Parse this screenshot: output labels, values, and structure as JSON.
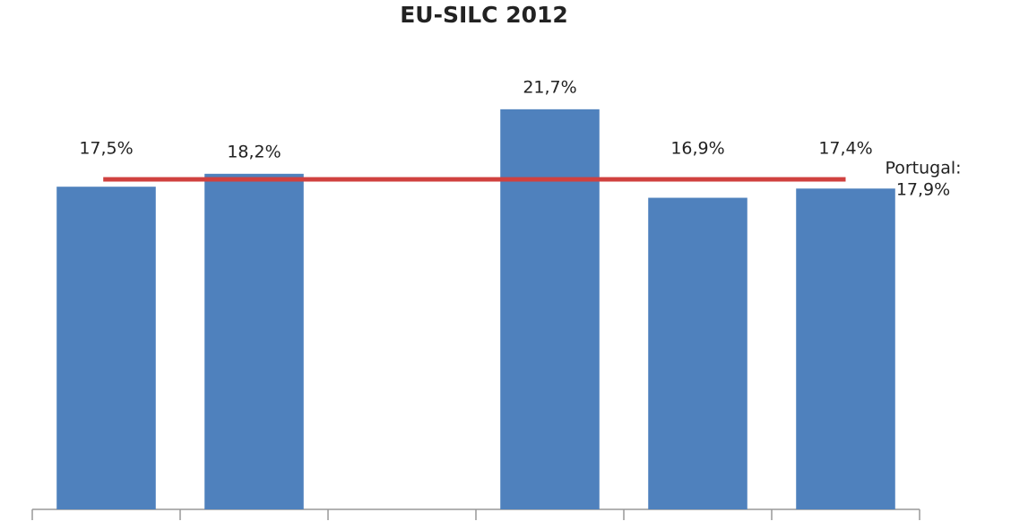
{
  "chart_data": {
    "type": "bar",
    "title": "EU-SILC 2012",
    "categories": [
      null,
      null,
      null,
      null,
      null,
      null
    ],
    "values": [
      17.5,
      18.2,
      null,
      21.7,
      16.9,
      17.4
    ],
    "value_labels": [
      "17,5%",
      "18,2%",
      null,
      "21,7%",
      "16,9%",
      "17,4%"
    ],
    "color": "#4f81bd",
    "ylim": [
      0,
      25
    ],
    "reference_line": {
      "value": 17.9,
      "label": [
        "Portugal:",
        "17,9%"
      ],
      "color": "#d0413f"
    }
  }
}
